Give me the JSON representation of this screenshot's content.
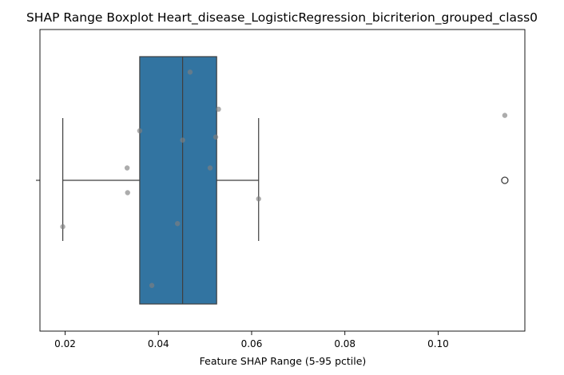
{
  "chart_data": {
    "type": "boxplot",
    "title": "SHAP Range Boxplot Heart_disease_LogisticRegression_bicriterion_grouped_class0",
    "xlabel": "Feature SHAP Range (5-95 pctile)",
    "ylabel": "",
    "xlim": [
      0.0146,
      0.1186
    ],
    "xticks": [
      0.02,
      0.04,
      0.06,
      0.08,
      0.1
    ],
    "xtick_labels": [
      "0.02",
      "0.04",
      "0.06",
      "0.08",
      "0.10"
    ],
    "grid": false,
    "box": {
      "whisker_low": 0.0195,
      "q1": 0.036,
      "median": 0.0452,
      "q3": 0.0525,
      "whisker_high": 0.0615,
      "outliers": [
        0.1143
      ],
      "color": "#3274a1"
    },
    "points": [
      {
        "x": 0.0195,
        "jitter": -0.15
      },
      {
        "x": 0.0333,
        "jitter": 0.04
      },
      {
        "x": 0.0334,
        "jitter": -0.04
      },
      {
        "x": 0.036,
        "jitter": 0.16
      },
      {
        "x": 0.0386,
        "jitter": -0.34
      },
      {
        "x": 0.0441,
        "jitter": -0.14
      },
      {
        "x": 0.0452,
        "jitter": 0.13
      },
      {
        "x": 0.0468,
        "jitter": 0.35
      },
      {
        "x": 0.0511,
        "jitter": 0.04
      },
      {
        "x": 0.0523,
        "jitter": 0.14
      },
      {
        "x": 0.0529,
        "jitter": 0.23
      },
      {
        "x": 0.0615,
        "jitter": -0.06
      },
      {
        "x": 0.1143,
        "jitter": 0.21
      }
    ],
    "point_color": "#808080"
  }
}
